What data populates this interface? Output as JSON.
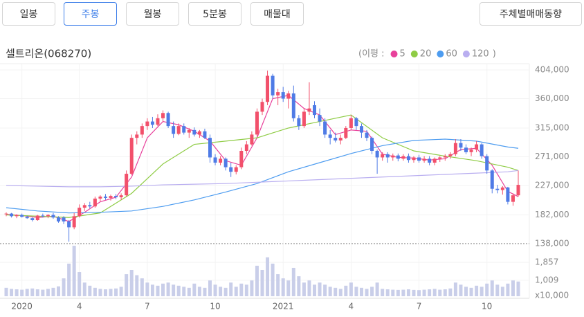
{
  "buttons": [
    "일봉",
    "주봉",
    "월봉",
    "5분봉",
    "매물대"
  ],
  "selected": 1,
  "right_button": "주체별매매동향",
  "chart_data": {
    "type": "candlestick",
    "title": "셀트리온(068270)",
    "legend_prefix": "(이평 :",
    "legend_suffix": ")",
    "up_color": "#f2506b",
    "down_color": "#4f7be6",
    "volume_color": "#c9cee9",
    "grid": true,
    "ylim": [
      138000,
      404000
    ],
    "yticks": [
      {
        "value": 404000,
        "label": "404,000"
      },
      {
        "value": 360000,
        "label": "360,000"
      },
      {
        "value": 315000,
        "label": "315,000"
      },
      {
        "value": 271000,
        "label": "271,000"
      },
      {
        "value": 227000,
        "label": "227,000"
      },
      {
        "value": 182000,
        "label": "182,000"
      },
      {
        "value": 138000,
        "label": "138,000"
      }
    ],
    "y2lim": [
      250,
      2750
    ],
    "y2ticks": [
      {
        "value": 1857,
        "label": "1,857"
      },
      {
        "value": 1009,
        "label": "1,009"
      }
    ],
    "y2_unit": "x10,000",
    "xlim": [
      0,
      98
    ],
    "xticks": [
      {
        "value": 3,
        "label": "2020"
      },
      {
        "value": 14,
        "label": "4"
      },
      {
        "value": 27,
        "label": "7"
      },
      {
        "value": 40,
        "label": "10"
      },
      {
        "value": 53,
        "label": "2021"
      },
      {
        "value": 66,
        "label": "4"
      },
      {
        "value": 79,
        "label": "7"
      },
      {
        "value": 92,
        "label": "10"
      }
    ],
    "candles": [
      [
        183000,
        186000,
        180000,
        184000
      ],
      [
        184000,
        185000,
        178000,
        180000
      ],
      [
        180000,
        183000,
        177000,
        182000
      ],
      [
        182000,
        184000,
        178000,
        179000
      ],
      [
        179000,
        181000,
        176000,
        177000
      ],
      [
        177000,
        178000,
        172000,
        174000
      ],
      [
        174000,
        182000,
        173000,
        181000
      ],
      [
        181000,
        184000,
        178000,
        180000
      ],
      [
        180000,
        183000,
        177000,
        182000
      ],
      [
        182000,
        185000,
        176000,
        178000
      ],
      [
        178000,
        180000,
        170000,
        172000
      ],
      [
        178000,
        180000,
        168000,
        172000
      ],
      [
        172000,
        174000,
        141000,
        163000
      ],
      [
        163000,
        185000,
        160000,
        180000
      ],
      [
        180000,
        198000,
        178000,
        193000
      ],
      [
        193000,
        200000,
        188000,
        197000
      ],
      [
        197000,
        202000,
        192000,
        195000
      ],
      [
        195000,
        210000,
        193000,
        207000
      ],
      [
        207000,
        212000,
        203000,
        210000
      ],
      [
        210000,
        214000,
        205000,
        208000
      ],
      [
        208000,
        213000,
        204000,
        211000
      ],
      [
        211000,
        214000,
        206000,
        209000
      ],
      [
        209000,
        215000,
        205000,
        212000
      ],
      [
        212000,
        250000,
        210000,
        245000
      ],
      [
        245000,
        305000,
        243000,
        300000
      ],
      [
        300000,
        310000,
        290000,
        305000
      ],
      [
        305000,
        322000,
        300000,
        318000
      ],
      [
        318000,
        330000,
        312000,
        325000
      ],
      [
        325000,
        332000,
        315000,
        320000
      ],
      [
        320000,
        336000,
        318000,
        330000
      ],
      [
        330000,
        342000,
        325000,
        338000
      ],
      [
        338000,
        340000,
        315000,
        318000
      ],
      [
        318000,
        325000,
        300000,
        306000
      ],
      [
        306000,
        322000,
        304000,
        318000
      ],
      [
        318000,
        322000,
        305000,
        308000
      ],
      [
        308000,
        315000,
        300000,
        312000
      ],
      [
        312000,
        316000,
        302000,
        305000
      ],
      [
        305000,
        312000,
        300000,
        310000
      ],
      [
        310000,
        314000,
        298000,
        300000
      ],
      [
        300000,
        305000,
        262000,
        270000
      ],
      [
        270000,
        275000,
        258000,
        262000
      ],
      [
        262000,
        272000,
        258000,
        268000
      ],
      [
        268000,
        270000,
        250000,
        255000
      ],
      [
        255000,
        262000,
        240000,
        248000
      ],
      [
        248000,
        258000,
        244000,
        255000
      ],
      [
        255000,
        285000,
        252000,
        280000
      ],
      [
        280000,
        295000,
        275000,
        290000
      ],
      [
        290000,
        310000,
        288000,
        305000
      ],
      [
        305000,
        345000,
        302000,
        340000
      ],
      [
        340000,
        360000,
        335000,
        355000
      ],
      [
        355000,
        403000,
        350000,
        395000
      ],
      [
        395000,
        398000,
        360000,
        365000
      ],
      [
        365000,
        375000,
        350000,
        370000
      ],
      [
        370000,
        378000,
        355000,
        360000
      ],
      [
        360000,
        372000,
        345000,
        368000
      ],
      [
        368000,
        380000,
        325000,
        330000
      ],
      [
        330000,
        335000,
        312000,
        318000
      ],
      [
        318000,
        345000,
        315000,
        340000
      ],
      [
        340000,
        385000,
        335000,
        345000
      ],
      [
        350000,
        356000,
        330000,
        335000
      ],
      [
        335000,
        345000,
        318000,
        325000
      ],
      [
        325000,
        330000,
        300000,
        305000
      ],
      [
        305000,
        312000,
        290000,
        300000
      ],
      [
        300000,
        308000,
        293000,
        296000
      ],
      [
        296000,
        305000,
        290000,
        300000
      ],
      [
        300000,
        318000,
        298000,
        315000
      ],
      [
        315000,
        335000,
        312000,
        330000
      ],
      [
        330000,
        332000,
        312000,
        318000
      ],
      [
        318000,
        322000,
        300000,
        308000
      ],
      [
        308000,
        312000,
        295000,
        300000
      ],
      [
        300000,
        302000,
        275000,
        280000
      ],
      [
        280000,
        282000,
        245000,
        270000
      ],
      [
        270000,
        278000,
        265000,
        275000
      ],
      [
        275000,
        278000,
        262000,
        270000
      ],
      [
        270000,
        276000,
        265000,
        273000
      ],
      [
        273000,
        276000,
        264000,
        268000
      ],
      [
        268000,
        275000,
        265000,
        272000
      ],
      [
        272000,
        276000,
        262000,
        266000
      ],
      [
        266000,
        272000,
        262000,
        270000
      ],
      [
        270000,
        274000,
        262000,
        265000
      ],
      [
        265000,
        272000,
        262000,
        268000
      ],
      [
        268000,
        272000,
        258000,
        262000
      ],
      [
        262000,
        270000,
        258000,
        268000
      ],
      [
        268000,
        272000,
        263000,
        270000
      ],
      [
        270000,
        275000,
        265000,
        272000
      ],
      [
        272000,
        278000,
        268000,
        275000
      ],
      [
        275000,
        298000,
        272000,
        292000
      ],
      [
        292000,
        298000,
        280000,
        285000
      ],
      [
        285000,
        290000,
        275000,
        278000
      ],
      [
        278000,
        285000,
        272000,
        282000
      ],
      [
        282000,
        295000,
        278000,
        290000
      ],
      [
        290000,
        292000,
        268000,
        272000
      ],
      [
        272000,
        275000,
        245000,
        250000
      ],
      [
        250000,
        252000,
        215000,
        222000
      ],
      [
        222000,
        228000,
        215000,
        220000
      ],
      [
        220000,
        226000,
        213000,
        224000
      ],
      [
        224000,
        225000,
        198000,
        202000
      ],
      [
        202000,
        215000,
        196000,
        212000
      ],
      [
        212000,
        250000,
        210000,
        228000
      ]
    ],
    "volume": [
      650,
      600,
      580,
      560,
      600,
      620,
      580,
      560,
      600,
      650,
      720,
      1100,
      1800,
      2650,
      1400,
      900,
      750,
      650,
      600,
      580,
      600,
      620,
      700,
      1300,
      1500,
      1250,
      1100,
      900,
      800,
      750,
      850,
      900,
      800,
      750,
      700,
      650,
      850,
      700,
      650,
      1000,
      800,
      700,
      650,
      900,
      700,
      850,
      800,
      1000,
      1700,
      1500,
      2100,
      1800,
      1300,
      1100,
      1000,
      1600,
      1200,
      900,
      1000,
      800,
      900,
      800,
      700,
      650,
      600,
      750,
      900,
      700,
      650,
      600,
      700,
      900,
      600,
      580,
      560,
      550,
      560,
      580,
      550,
      540,
      560,
      580,
      600,
      560,
      580,
      620,
      900,
      800,
      700,
      650,
      750,
      700,
      850,
      1000,
      800,
      700,
      850,
      1000,
      950
    ],
    "series": [
      {
        "name": "5",
        "color": "#e8419b",
        "x": [
          0,
          3,
          6,
          9,
          12,
          15,
          18,
          21,
          24,
          27,
          30,
          33,
          36,
          39,
          42,
          45,
          48,
          51,
          54,
          57,
          60,
          63,
          66,
          69,
          72,
          75,
          78,
          81,
          84,
          87,
          90,
          93,
          96,
          98
        ],
        "values": [
          183000,
          181000,
          178000,
          180000,
          172000,
          186000,
          202000,
          209000,
          240000,
          300000,
          325000,
          320000,
          310000,
          295000,
          265000,
          258000,
          300000,
          360000,
          365000,
          345000,
          335000,
          305000,
          312000,
          310000,
          275000,
          270000,
          269000,
          266000,
          268000,
          282000,
          284000,
          258000,
          218000,
          210000
        ]
      },
      {
        "name": "20",
        "color": "#8fcc45",
        "x": [
          0,
          6,
          12,
          18,
          24,
          30,
          36,
          42,
          48,
          54,
          60,
          66,
          72,
          78,
          84,
          90,
          96,
          98
        ],
        "values": [
          182000,
          180000,
          178000,
          185000,
          215000,
          260000,
          290000,
          295000,
          300000,
          315000,
          325000,
          335000,
          300000,
          280000,
          272000,
          265000,
          255000,
          250000
        ]
      },
      {
        "name": "60",
        "color": "#4d9cf0",
        "x": [
          0,
          6,
          12,
          18,
          24,
          30,
          36,
          42,
          48,
          54,
          60,
          66,
          72,
          78,
          84,
          90,
          96,
          98
        ],
        "values": [
          193000,
          188000,
          185000,
          186000,
          188000,
          195000,
          205000,
          217000,
          230000,
          248000,
          262000,
          276000,
          288000,
          296000,
          298000,
          295000,
          286000,
          284000
        ]
      },
      {
        "name": "120",
        "color": "#b9aef0",
        "x": [
          0,
          6,
          12,
          18,
          24,
          30,
          36,
          42,
          48,
          54,
          60,
          66,
          72,
          78,
          84,
          90,
          96,
          98
        ],
        "values": [
          227000,
          226000,
          225000,
          225000,
          226000,
          228000,
          229000,
          230000,
          232000,
          234000,
          236000,
          238000,
          240000,
          242000,
          244000,
          246000,
          248000,
          250000
        ]
      }
    ]
  }
}
